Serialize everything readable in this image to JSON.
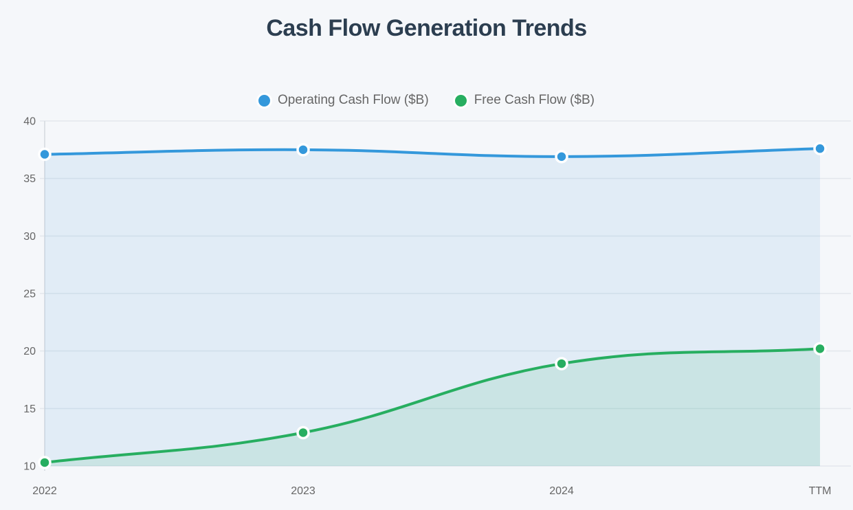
{
  "page": {
    "background_color": "#f5f7fa",
    "title_color": "#2c3e50",
    "axis_text_color": "#666666",
    "grid_color": "#e3e7ec",
    "axis_line_color": "#d4d9de"
  },
  "title": "Cash Flow Generation Trends",
  "legend": {
    "items": [
      {
        "label": "Operating Cash Flow ($B)",
        "color": "#3498db"
      },
      {
        "label": "Free Cash Flow ($B)",
        "color": "#27ae60"
      }
    ]
  },
  "chart_data": {
    "type": "area",
    "title": "Cash Flow Generation Trends",
    "categories": [
      "2022",
      "2023",
      "2024",
      "TTM"
    ],
    "series": [
      {
        "name": "Operating Cash Flow ($B)",
        "color": "#3498db",
        "fill_alpha": 0.1,
        "values": [
          37.1,
          37.5,
          36.9,
          37.6
        ]
      },
      {
        "name": "Free Cash Flow ($B)",
        "color": "#27ae60",
        "fill_alpha": 0.12,
        "values": [
          10.3,
          12.9,
          18.9,
          20.2
        ]
      }
    ],
    "xlabel": "",
    "ylabel": "",
    "ylim": [
      10,
      40
    ],
    "y_ticks": [
      40,
      35,
      30,
      25,
      20,
      15,
      10
    ],
    "grid": true,
    "legend_position": "top",
    "line_tension": 0.4
  }
}
